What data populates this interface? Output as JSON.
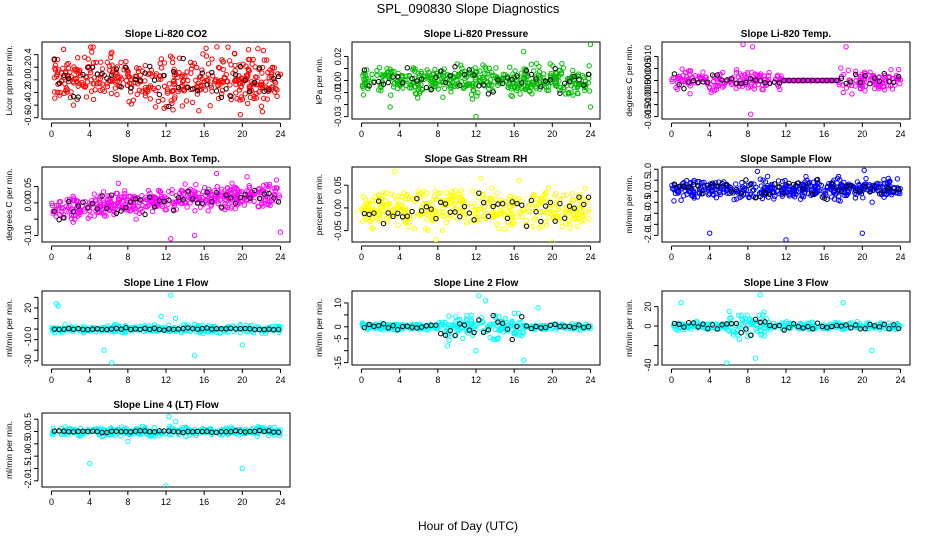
{
  "figure": {
    "title": "SPL_090830  Slope Diagnostics",
    "xlabel": "Hour of Day (UTC)"
  },
  "chart_data": [
    {
      "type": "scatter",
      "title": "Slope Li-820 CO2",
      "ylabel": "Licor ppm per min.",
      "xlim": [
        -1,
        25
      ],
      "ylim": [
        -0.62,
        0.6
      ],
      "xticks": [
        0,
        4,
        8,
        12,
        16,
        20,
        24
      ],
      "yticks": [
        -0.6,
        -0.4,
        -0.2,
        0.0,
        0.2,
        0.4
      ],
      "ytick_labels": [
        "-0.6",
        "-0.4",
        "-0.2",
        "0.0",
        "0.2",
        "0.4"
      ],
      "colors": {
        "main": "#ff0000",
        "overlay": "#000000"
      },
      "series": [
        {
          "pattern": "band",
          "center": 0.0,
          "spread": 0.42,
          "count": 430,
          "outliers": [
            [
              4.1,
              0.52
            ],
            [
              16.2,
              0.5
            ],
            [
              18.5,
              0.52
            ],
            [
              2.3,
              -0.4
            ],
            [
              11.8,
              -0.45
            ],
            [
              19.8,
              -0.55
            ]
          ]
        }
      ]
    },
    {
      "type": "scatter",
      "title": "Slope Li-820 Pressure",
      "ylabel": "kPa per min.",
      "xlim": [
        -1,
        25
      ],
      "ylim": [
        -0.032,
        0.032
      ],
      "xticks": [
        0,
        4,
        8,
        12,
        16,
        20,
        24
      ],
      "yticks": [
        -0.03,
        -0.02,
        -0.01,
        0.0,
        0.01,
        0.02
      ],
      "ytick_labels": [
        "-0.03",
        "",
        "-0.01",
        "0.00",
        "",
        "0.02"
      ],
      "colors": {
        "main": "#00bb00",
        "overlay": "#000000"
      },
      "series": [
        {
          "pattern": "band",
          "center": 0.0,
          "spread": 0.012,
          "count": 430,
          "outliers": [
            [
              0.2,
              -0.012
            ],
            [
              3.0,
              -0.022
            ],
            [
              12.0,
              -0.03
            ],
            [
              17.0,
              0.024
            ],
            [
              24.0,
              0.03
            ],
            [
              24.0,
              -0.022
            ],
            [
              21.0,
              0.014
            ]
          ]
        }
      ]
    },
    {
      "type": "scatter",
      "title": "Slope Li-820 Temp.",
      "ylabel": "degrees C per min.",
      "xlim": [
        -1,
        25
      ],
      "ylim": [
        -0.016,
        0.016
      ],
      "xticks": [
        0,
        4,
        8,
        12,
        16,
        20,
        24
      ],
      "yticks": [
        -0.015,
        -0.01,
        -0.005,
        0.0,
        0.005,
        0.01
      ],
      "ytick_labels": [
        "-0.015",
        "-0.010",
        "-0.005",
        "0.000",
        "0.005",
        "0.010"
      ],
      "colors": {
        "main": "#ff00ff",
        "overlay": "#000000"
      },
      "series": [
        {
          "pattern": "band_gap",
          "gap": [
            11.5,
            17.5
          ],
          "center": 0.0,
          "spread": 0.0045,
          "count": 330,
          "outliers": [
            [
              7.5,
              0.015
            ],
            [
              8.5,
              0.014
            ],
            [
              8.3,
              -0.014
            ],
            [
              18.3,
              0.014
            ],
            [
              18.0,
              -0.005
            ],
            [
              2.0,
              0.004
            ]
          ]
        }
      ]
    },
    {
      "type": "scatter",
      "title": "Slope Amb. Box Temp.",
      "ylabel": "degrees C per min.",
      "xlim": [
        -1,
        25
      ],
      "ylim": [
        -0.12,
        0.11
      ],
      "xticks": [
        0,
        4,
        8,
        12,
        16,
        20,
        24
      ],
      "yticks": [
        -0.1,
        -0.05,
        0.0,
        0.05
      ],
      "ytick_labels": [
        "-0.10",
        "",
        "0.00",
        "0.05"
      ],
      "colors": {
        "main": "#ff00ff",
        "overlay": "#000000"
      },
      "series": [
        {
          "pattern": "trend",
          "start": -0.02,
          "end": 0.03,
          "spread": 0.04,
          "count": 430,
          "outliers": [
            [
              7.0,
              0.06
            ],
            [
              12.5,
              -0.11
            ],
            [
              15.0,
              -0.1
            ],
            [
              17.3,
              0.09
            ],
            [
              20.5,
              0.08
            ],
            [
              24.0,
              -0.09
            ]
          ]
        }
      ]
    },
    {
      "type": "scatter",
      "title": "Slope Gas Stream RH",
      "ylabel": "percent per min.",
      "xlim": [
        -1,
        25
      ],
      "ylim": [
        -0.075,
        0.09
      ],
      "xticks": [
        0,
        4,
        8,
        12,
        16,
        20,
        24
      ],
      "yticks": [
        -0.05,
        0.0,
        0.05
      ],
      "ytick_labels": [
        "-0.05",
        "0.00",
        "0.05"
      ],
      "colors": {
        "main": "#ffff00",
        "overlay": "#000000"
      },
      "series": [
        {
          "pattern": "band",
          "center": 0.0,
          "spread": 0.045,
          "count": 430,
          "outliers": [
            [
              3.5,
              0.08
            ],
            [
              12.5,
              0.065
            ],
            [
              7.8,
              -0.07
            ],
            [
              20.0,
              -0.075
            ],
            [
              16.5,
              0.06
            ]
          ]
        }
      ]
    },
    {
      "type": "scatter",
      "title": "Slope Sample Flow",
      "ylabel": "ml/min per min.",
      "xlim": [
        -1,
        25
      ],
      "ylim": [
        -2.3,
        1.1
      ],
      "xticks": [
        0,
        4,
        8,
        12,
        16,
        20,
        24
      ],
      "yticks": [
        -2.0,
        -1.5,
        -1.0,
        -0.5,
        0.0,
        0.5,
        1.0
      ],
      "ytick_labels": [
        "-2.0",
        "-1.5",
        "-1.0",
        "-0.5",
        "0.0",
        "0.5",
        "1.0"
      ],
      "colors": {
        "main": "#0000ff",
        "overlay": "#000000"
      },
      "series": [
        {
          "pattern": "band",
          "center": 0.1,
          "spread": 0.5,
          "count": 430,
          "outliers": [
            [
              4.0,
              -1.9
            ],
            [
              12.0,
              -2.2
            ],
            [
              20.0,
              -1.9
            ],
            [
              9.0,
              0.9
            ],
            [
              20.2,
              0.95
            ]
          ]
        }
      ]
    },
    {
      "type": "scatter",
      "title": "Slope Line 1 Flow",
      "ylabel": "ml/min per min.",
      "xlim": [
        -1,
        25
      ],
      "ylim": [
        -34,
        36
      ],
      "xticks": [
        0,
        4,
        8,
        12,
        16,
        20,
        24
      ],
      "yticks": [
        -30,
        -20,
        -10,
        0,
        10,
        20,
        30
      ],
      "ytick_labels": [
        "-30",
        "",
        "-10",
        "0",
        "",
        "20",
        ""
      ],
      "colors": {
        "main": "#00ffff",
        "overlay": "#000000"
      },
      "series": [
        {
          "pattern": "flat",
          "center": 0.0,
          "spread": 4,
          "count": 300,
          "outliers": [
            [
              0.5,
              24
            ],
            [
              0.7,
              22
            ],
            [
              12.5,
              32
            ],
            [
              13.0,
              10
            ],
            [
              5.5,
              -20
            ],
            [
              6.3,
              -32
            ],
            [
              15.0,
              -25
            ],
            [
              20.0,
              -15
            ],
            [
              11.5,
              12
            ]
          ]
        }
      ]
    },
    {
      "type": "scatter",
      "title": "Slope Line 2 Flow",
      "ylabel": "ml/min per min.",
      "xlim": [
        -1,
        25
      ],
      "ylim": [
        -16,
        15
      ],
      "xticks": [
        0,
        4,
        8,
        12,
        16,
        20,
        24
      ],
      "yticks": [
        -15,
        -10,
        -5,
        0,
        5,
        10
      ],
      "ytick_labels": [
        "-15",
        "",
        "-5",
        "0",
        "",
        "10"
      ],
      "colors": {
        "main": "#00ffff",
        "overlay": "#000000"
      },
      "series": [
        {
          "pattern": "band_widen",
          "center": 0.0,
          "spread": 1.5,
          "wide": [
            8,
            17
          ],
          "wide_spread": 6,
          "count": 360,
          "outliers": [
            [
              12.3,
              13
            ],
            [
              13.0,
              11
            ],
            [
              18.5,
              8
            ],
            [
              17.0,
              -14
            ],
            [
              9.0,
              -8
            ],
            [
              12.0,
              -10
            ]
          ]
        }
      ]
    },
    {
      "type": "scatter",
      "title": "Slope Line 3 Flow",
      "ylabel": "ml/min per min.",
      "xlim": [
        -1,
        25
      ],
      "ylim": [
        -40,
        36
      ],
      "xticks": [
        0,
        4,
        8,
        12,
        16,
        20,
        24
      ],
      "yticks": [
        -40,
        -20,
        0,
        20
      ],
      "ytick_labels": [
        "-40",
        "",
        "0",
        "20"
      ],
      "colors": {
        "main": "#00ffff",
        "overlay": "#000000"
      },
      "series": [
        {
          "pattern": "band_widen",
          "center": 0.0,
          "spread": 4,
          "wide": [
            6,
            10
          ],
          "wide_spread": 14,
          "count": 330,
          "outliers": [
            [
              1.0,
              24
            ],
            [
              9.3,
              32
            ],
            [
              18.0,
              24
            ],
            [
              8.8,
              -33
            ],
            [
              5.8,
              -38
            ],
            [
              21.0,
              -25
            ]
          ]
        }
      ]
    },
    {
      "type": "scatter",
      "title": "Slope Line 4 (LT) Flow",
      "ylabel": "ml/min per min.",
      "xlim": [
        -1,
        25
      ],
      "ylim": [
        -2.25,
        0.75
      ],
      "xticks": [
        0,
        4,
        8,
        12,
        16,
        20,
        24
      ],
      "yticks": [
        -2.0,
        -1.5,
        -1.0,
        -0.5,
        0.0,
        0.5
      ],
      "ytick_labels": [
        "-2.0",
        "-1.5",
        "-1.0",
        "-0.5",
        "0.0",
        "0.5"
      ],
      "colors": {
        "main": "#00ffff",
        "overlay": "#000000"
      },
      "series": [
        {
          "pattern": "flat",
          "center": 0.0,
          "spread": 0.18,
          "count": 330,
          "outliers": [
            [
              4.0,
              -1.3
            ],
            [
              12.0,
              -2.2
            ],
            [
              20.0,
              -1.5
            ],
            [
              12.3,
              0.6
            ],
            [
              13.0,
              0.4
            ],
            [
              8.0,
              -0.4
            ]
          ]
        }
      ]
    }
  ]
}
